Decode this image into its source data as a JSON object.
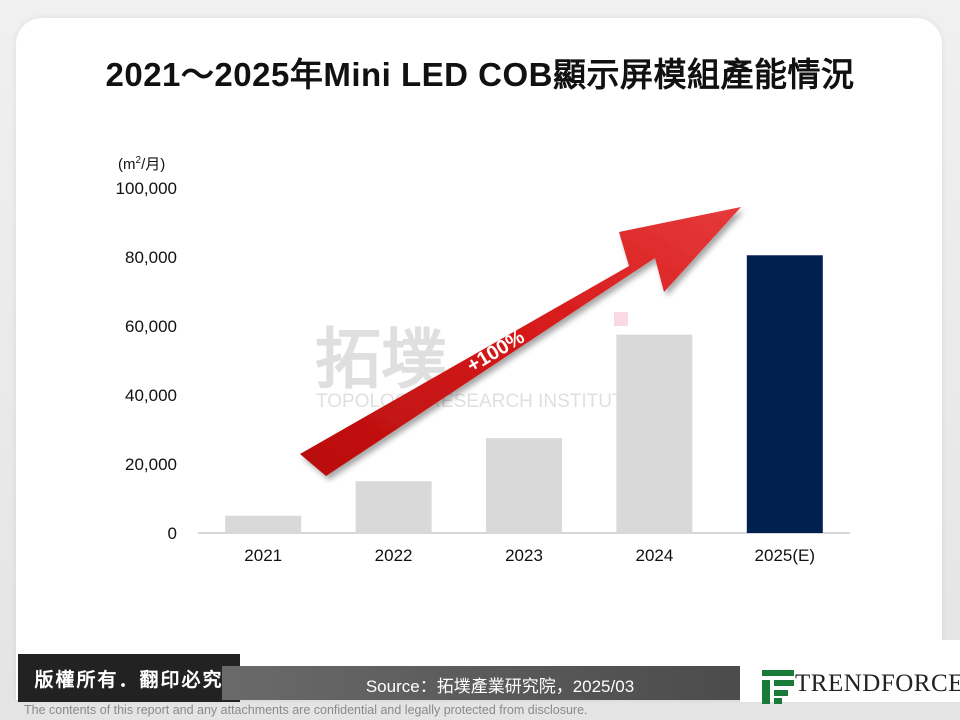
{
  "title": "2021～2025年Mini LED COB顯示屏模組產能情況",
  "chart_data": {
    "type": "bar",
    "title": "2021～2025年Mini LED COB顯示屏模組產能情況",
    "ylabel": "(m²/月)",
    "ylabel_unit": "m",
    "ylabel_sup": "2",
    "ylabel_rest": "/月)",
    "categories": [
      "2021",
      "2022",
      "2023",
      "2024",
      "2025(E)"
    ],
    "values": [
      5000,
      15000,
      27500,
      57500,
      80500
    ],
    "ylim": [
      0,
      100000
    ],
    "yticks": [
      0,
      20000,
      40000,
      60000,
      80000,
      100000
    ],
    "ytick_labels": [
      "0",
      "20,000",
      "40,000",
      "60,000",
      "80,000",
      "100,000"
    ],
    "bar_colors": [
      "#d9d9d9",
      "#d9d9d9",
      "#d9d9d9",
      "#d9d9d9",
      "#002050"
    ],
    "annotation": "+100%"
  },
  "watermark": {
    "text_cn": "拓墣",
    "text_en": "TOPOLOGY RESEARCH INSTITUTE"
  },
  "footer": {
    "copyright": "版權所有．翻印必究",
    "source": "Source：拓墣產業研究院，2025/03",
    "logo": "TRENDFORCE",
    "disclaimer": "The contents of this report and any attachments are confidential and legally protected from disclosure."
  },
  "colors": {
    "arrow": "#cc1111",
    "bar_gray": "#d9d9d9",
    "bar_highlight": "#002050",
    "logo_green": "#1a7a3a"
  }
}
